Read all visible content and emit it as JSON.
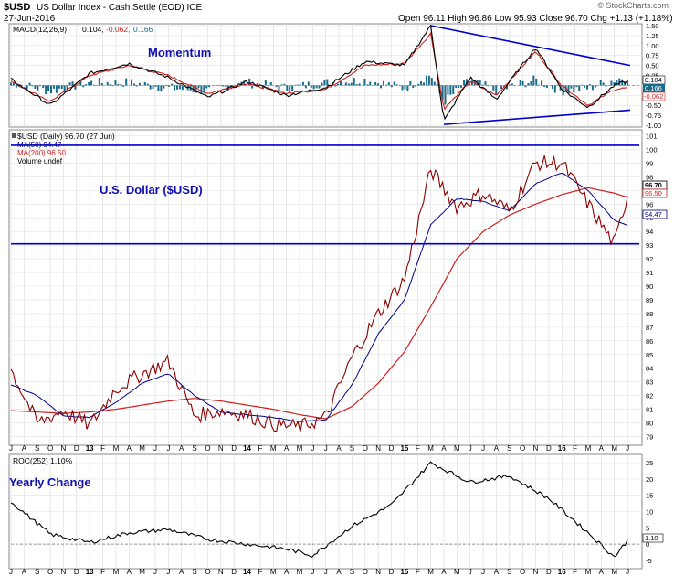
{
  "header": {
    "symbol": "$USD",
    "title": "US Dollar Index - Cash Settle (EOD) ICE",
    "date": "27-Jun-2016",
    "watermark": "© StockCharts.com",
    "quote": "Open 96.11  High 96.86  Low 95.93  Close 96.70  Chg +1.13 (+1.18%)",
    "quote_arrow": "▲"
  },
  "macd_panel": {
    "legend_name": "MACD(12,26,9)",
    "legend_v1": "0.104,",
    "legend_v2": "-0.062,",
    "legend_v3": "0.166",
    "annotation": "Momentum",
    "axis_ticks": [
      "1.50",
      "1.25",
      "1.00",
      "0.75",
      "0.50",
      "0.25",
      "0.00",
      "-0.25",
      "-0.50",
      "-0.75",
      "-1.00"
    ],
    "tag_macd": "0.104",
    "tag_hist": "0.166",
    "tag_signal": "-0.062",
    "colors": {
      "macd": "#000000",
      "signal": "#d02020",
      "histogram": "#1a6a8a",
      "trendline": "#0000cc"
    }
  },
  "price_panel": {
    "legend_line1": "$USD (Daily) 96.70 (27 Jun)",
    "legend_ma50": "MA(50) 94.47",
    "legend_ma200": "MA(200) 96.50",
    "legend_volume": "Volume undef",
    "annotation": "U.S. Dollar ($USD)",
    "axis_ticks": [
      "101",
      "100",
      "99",
      "98",
      "97",
      "96",
      "95",
      "94",
      "93",
      "92",
      "91",
      "90",
      "89",
      "88",
      "87",
      "86",
      "85",
      "84",
      "83",
      "82",
      "81",
      "80",
      "79"
    ],
    "tag_price": "96.70",
    "tag_ma200": "96.50",
    "tag_ma50": "94.47",
    "colors": {
      "price": "#8b0000",
      "ma50": "#00008b",
      "ma200": "#cc2020",
      "support": "#0000cc"
    }
  },
  "roc_panel": {
    "legend": "ROC(252) 1.10%",
    "annotation": "Yearly Change",
    "axis_ticks": [
      "25",
      "20",
      "15",
      "10",
      "5",
      "0",
      "-5"
    ],
    "tag_value": "1.10"
  },
  "x_axis": {
    "labels": [
      "J",
      "A",
      "S",
      "O",
      "N",
      "D",
      "13",
      "F",
      "M",
      "A",
      "M",
      "J",
      "J",
      "A",
      "S",
      "O",
      "N",
      "D",
      "14",
      "F",
      "M",
      "A",
      "M",
      "J",
      "J",
      "A",
      "S",
      "O",
      "N",
      "D",
      "15",
      "F",
      "M",
      "A",
      "M",
      "J",
      "J",
      "A",
      "S",
      "O",
      "N",
      "D",
      "16",
      "F",
      "M",
      "A",
      "M",
      "J"
    ]
  },
  "chart_data": [
    {
      "panel": "MACD(12,26,9)",
      "type": "line",
      "ylim": [
        -1.0,
        1.5
      ],
      "x": [
        "2012-07",
        "2012-10",
        "2013-01",
        "2013-04",
        "2013-07",
        "2013-10",
        "2014-01",
        "2014-04",
        "2014-07",
        "2014-10",
        "2015-01",
        "2015-03",
        "2015-04",
        "2015-06",
        "2015-08",
        "2015-11",
        "2016-01",
        "2016-03",
        "2016-05",
        "2016-06"
      ],
      "series": [
        {
          "name": "MACD",
          "values": [
            0.15,
            -0.5,
            0.3,
            0.55,
            0.2,
            -0.3,
            0.1,
            -0.25,
            -0.05,
            0.6,
            0.5,
            1.5,
            -0.9,
            0.2,
            -0.35,
            0.95,
            -0.1,
            -0.55,
            0.0,
            0.104
          ]
        },
        {
          "name": "Signal",
          "values": [
            0.1,
            -0.4,
            0.25,
            0.5,
            0.25,
            -0.2,
            0.05,
            -0.2,
            -0.1,
            0.5,
            0.55,
            1.3,
            -0.6,
            0.1,
            -0.25,
            0.85,
            0.0,
            -0.5,
            -0.1,
            -0.062
          ]
        }
      ]
    },
    {
      "panel": "$USD (Daily)",
      "type": "line",
      "ylim": [
        78.5,
        101.3
      ],
      "x": [
        "2012-07",
        "2012-09",
        "2012-11",
        "2013-01",
        "2013-03",
        "2013-05",
        "2013-07",
        "2013-09",
        "2013-11",
        "2014-01",
        "2014-03",
        "2014-05",
        "2014-07",
        "2014-09",
        "2014-11",
        "2015-01",
        "2015-03",
        "2015-05",
        "2015-07",
        "2015-09",
        "2015-11",
        "2016-01",
        "2016-03",
        "2016-05",
        "2016-06"
      ],
      "series": [
        {
          "name": "$USD",
          "values": [
            83.9,
            80.0,
            80.9,
            79.8,
            82.5,
            83.6,
            84.5,
            80.5,
            80.9,
            80.6,
            79.9,
            79.7,
            80.4,
            84.8,
            88.0,
            90.5,
            98.5,
            95.8,
            96.8,
            95.5,
            99.0,
            99.0,
            96.0,
            93.0,
            96.7
          ]
        },
        {
          "name": "MA(50)",
          "values": [
            82.8,
            82.0,
            80.5,
            80.4,
            81.5,
            82.9,
            83.6,
            82.0,
            80.8,
            80.6,
            80.4,
            80.1,
            80.2,
            82.8,
            86.5,
            89.0,
            94.5,
            96.4,
            96.2,
            95.5,
            97.5,
            98.3,
            97.0,
            94.8,
            94.47
          ]
        },
        {
          "name": "MA(200)",
          "values": [
            80.9,
            80.8,
            80.7,
            80.8,
            81.0,
            81.3,
            81.6,
            81.8,
            81.6,
            81.3,
            81.0,
            80.6,
            80.3,
            81.2,
            82.9,
            85.2,
            88.5,
            92.0,
            94.0,
            95.2,
            96.0,
            96.7,
            97.2,
            96.8,
            96.5
          ]
        }
      ]
    },
    {
      "panel": "ROC(252)",
      "type": "line",
      "ylim": [
        -7,
        27
      ],
      "x": [
        "2012-07",
        "2012-10",
        "2013-01",
        "2013-04",
        "2013-07",
        "2013-10",
        "2014-01",
        "2014-04",
        "2014-06",
        "2014-09",
        "2014-12",
        "2015-03",
        "2015-06",
        "2015-09",
        "2015-12",
        "2016-03",
        "2016-05",
        "2016-06"
      ],
      "series": [
        {
          "name": "ROC",
          "values": [
            13.0,
            3.0,
            0.5,
            3.5,
            4.5,
            1.5,
            0.0,
            -1.5,
            -3.5,
            5.5,
            12.0,
            25.0,
            19.0,
            21.0,
            14.0,
            3.5,
            -4.0,
            1.1
          ]
        }
      ]
    }
  ]
}
